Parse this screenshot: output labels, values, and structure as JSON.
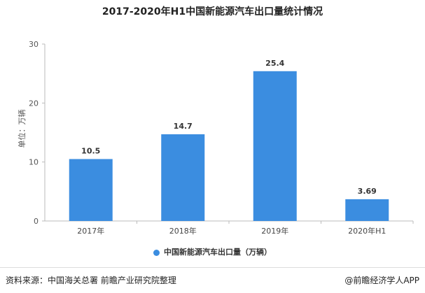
{
  "chart_data": {
    "type": "bar",
    "title": "2017-2020年H1中国新能源汽车出口量统计情况",
    "ylabel": "单位：万辆",
    "categories": [
      "2017年",
      "2018年",
      "2019年",
      "2020年H1"
    ],
    "series": [
      {
        "name": "中国新能源汽车出口量（万辆）",
        "values": [
          10.5,
          14.7,
          25.4,
          3.69
        ]
      }
    ],
    "data_labels": [
      "10.5",
      "14.7",
      "25.4",
      "3.69"
    ],
    "ylim": [
      0,
      30
    ],
    "yticks": [
      0,
      10,
      20,
      30
    ],
    "grid": false,
    "legend_position": "bottom",
    "colors": {
      "bar": "#3b8de0"
    }
  },
  "footer": {
    "source": "资料来源：中国海关总署 前瞻产业研究院整理",
    "credit": "@前瞻经济学人APP"
  }
}
